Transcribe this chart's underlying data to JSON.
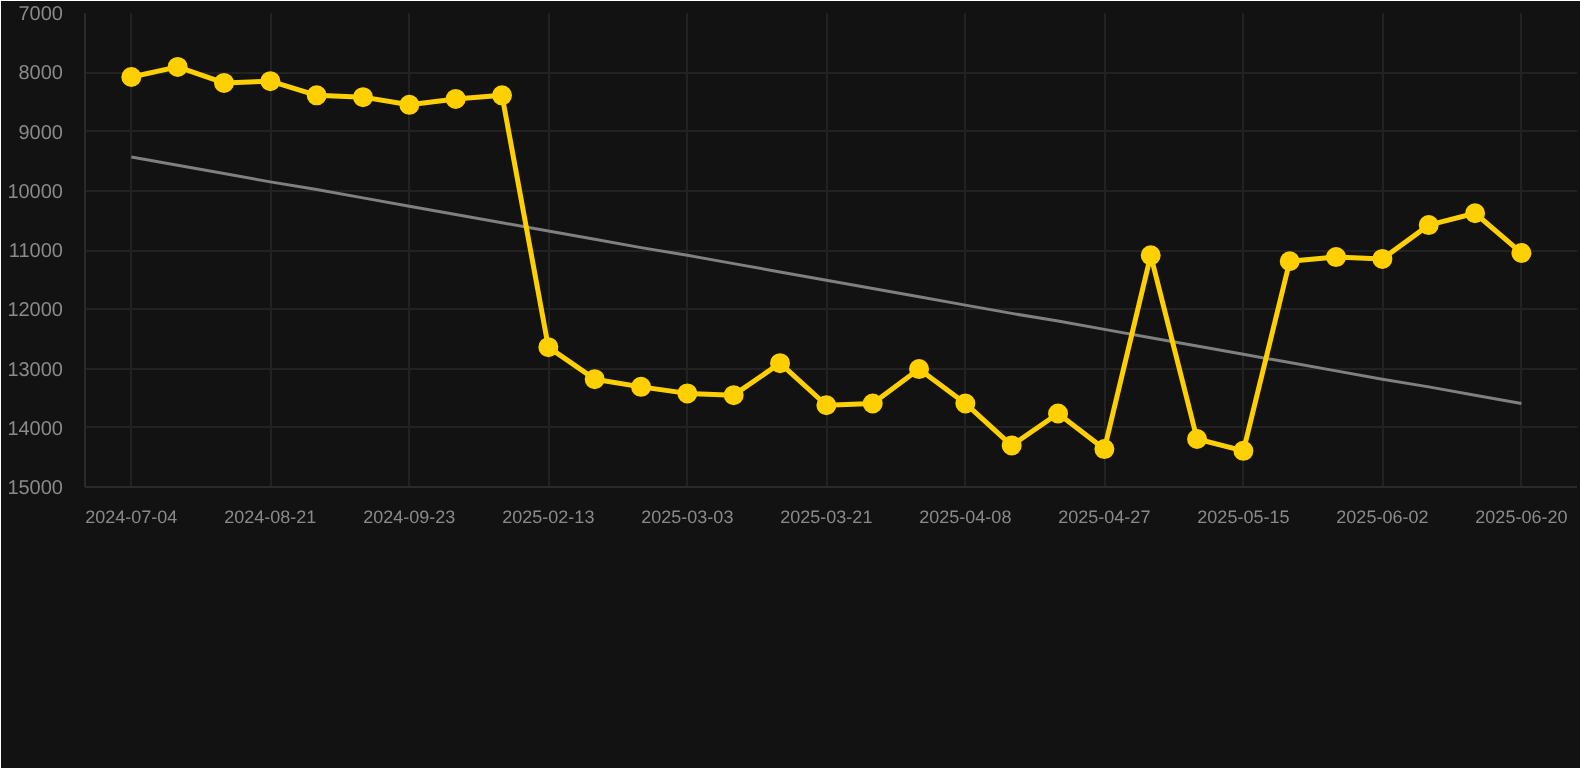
{
  "chart_data": {
    "type": "line",
    "categories": [
      "2024-07-04",
      null,
      null,
      "2024-08-21",
      null,
      null,
      "2024-09-23",
      null,
      null,
      "2025-02-13",
      null,
      null,
      "2025-03-03",
      null,
      null,
      "2025-03-21",
      null,
      null,
      "2025-04-08",
      null,
      null,
      "2025-04-27",
      null,
      null,
      "2025-05-15",
      null,
      null,
      "2025-06-02",
      null,
      null,
      "2025-06-20"
    ],
    "series": [
      {
        "color": "#808080",
        "values": [
          9430,
          9570,
          9710,
          9850,
          9980,
          10120,
          10260,
          10400,
          10540,
          10680,
          10820,
          10960,
          11090,
          11230,
          11370,
          11510,
          11650,
          11790,
          11930,
          12070,
          12200,
          12340,
          12480,
          12620,
          12760,
          12900,
          13040,
          13180,
          13310,
          13450,
          13590
        ],
        "marker": "none"
      },
      {
        "color": "#ffd000",
        "marker": "circle",
        "values": [
          8080,
          7910,
          8180,
          8150,
          8390,
          8420,
          8550,
          8450,
          8390,
          12640,
          13180,
          13310,
          13420,
          13450,
          12910,
          13620,
          13590,
          13010,
          13590,
          14300,
          13760,
          14360,
          11090,
          14190,
          14390,
          11190,
          11120,
          11150,
          10580,
          10380,
          11050
        ]
      }
    ],
    "ylim": [
      15000,
      7000
    ],
    "yticks": [
      7000,
      8000,
      9000,
      10000,
      11000,
      12000,
      13000,
      14000,
      15000
    ],
    "grid": true
  }
}
